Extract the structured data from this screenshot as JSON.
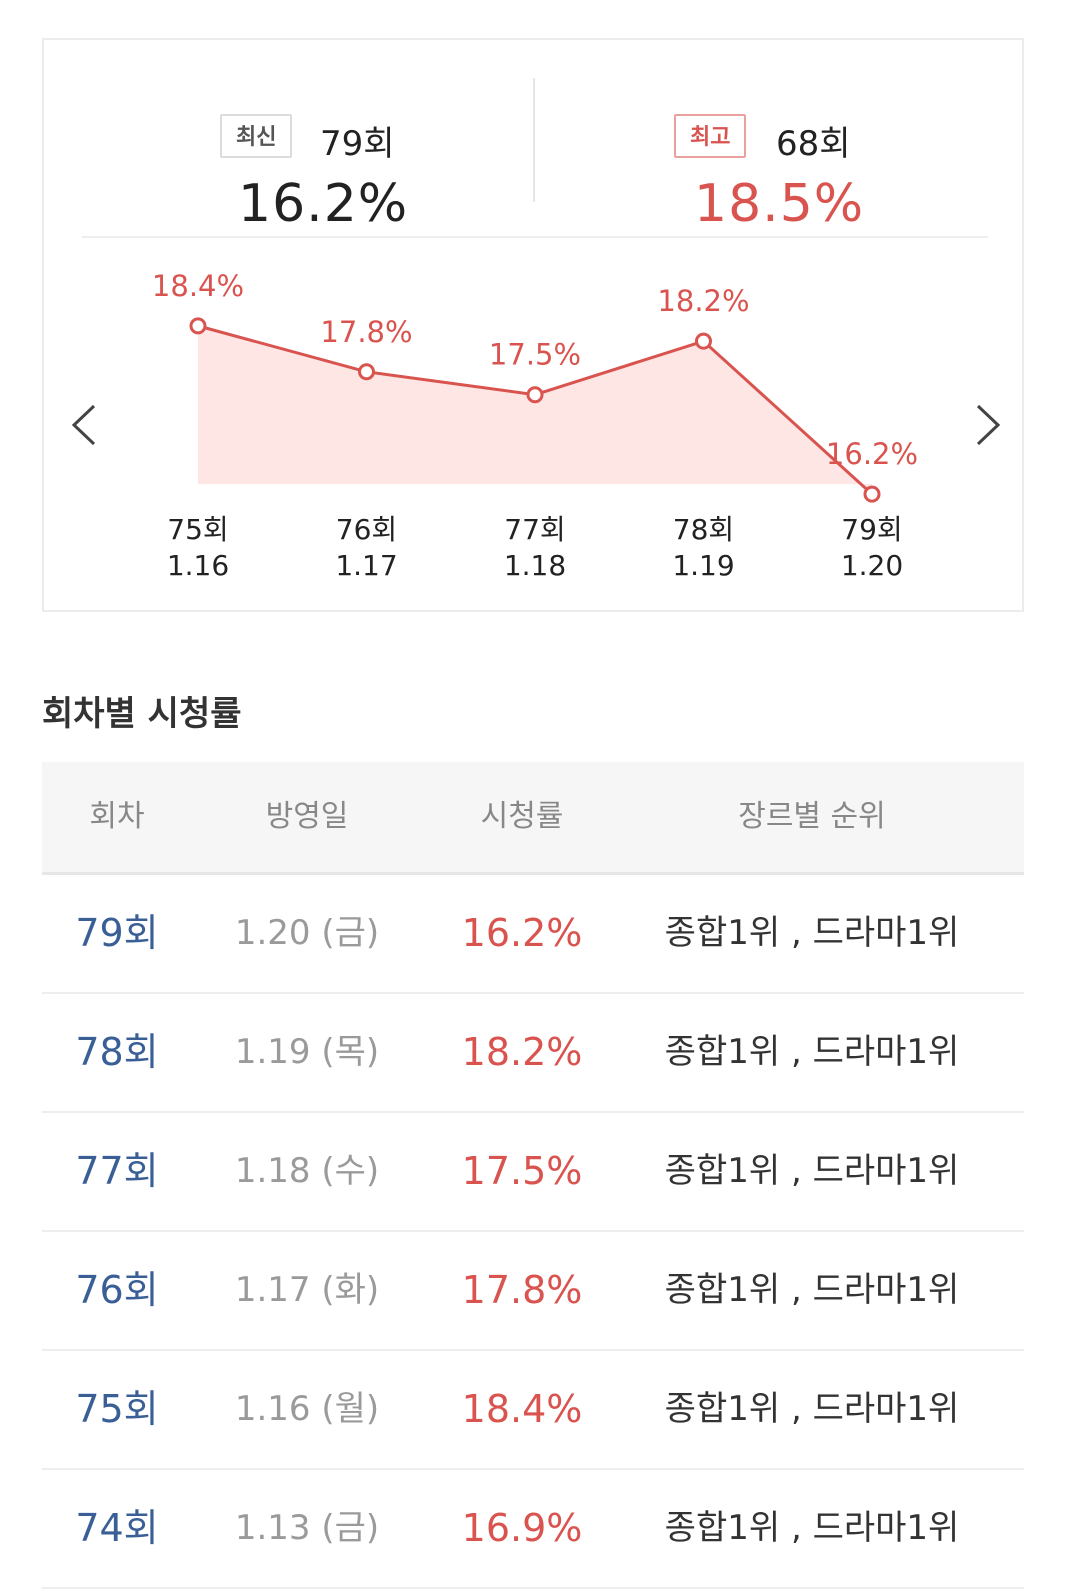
{
  "summary": {
    "latest": {
      "badge": "최신",
      "episode": "79회",
      "rating": "16.2%"
    },
    "highest": {
      "badge": "최고",
      "episode": "68회",
      "rating": "18.5%"
    }
  },
  "chart_data": {
    "type": "area",
    "categories": [
      "75회",
      "76회",
      "77회",
      "78회",
      "79회"
    ],
    "dates": [
      "1.16",
      "1.17",
      "1.18",
      "1.19",
      "1.20"
    ],
    "values": [
      18.4,
      17.8,
      17.5,
      18.2,
      16.2
    ],
    "value_labels": [
      "18.4%",
      "17.8%",
      "17.5%",
      "18.2%",
      "16.2%"
    ],
    "ylim": [
      15.6,
      19.0
    ],
    "colors": {
      "line": "#d9534f",
      "fill": "#fde6e4"
    }
  },
  "nav": {
    "prev_icon": "chevron-left-icon",
    "next_icon": "chevron-right-icon"
  },
  "section_title": "회차별 시청률",
  "table": {
    "headers": [
      "회차",
      "방영일",
      "시청률",
      "장르별 순위"
    ],
    "rows": [
      {
        "episode": "79회",
        "date": "1.20 (금)",
        "rating": "16.2%",
        "rank": "종합1위 , 드라마1위"
      },
      {
        "episode": "78회",
        "date": "1.19 (목)",
        "rating": "18.2%",
        "rank": "종합1위 , 드라마1위"
      },
      {
        "episode": "77회",
        "date": "1.18 (수)",
        "rating": "17.5%",
        "rank": "종합1위 , 드라마1위"
      },
      {
        "episode": "76회",
        "date": "1.17 (화)",
        "rating": "17.8%",
        "rank": "종합1위 , 드라마1위"
      },
      {
        "episode": "75회",
        "date": "1.16 (월)",
        "rating": "18.4%",
        "rank": "종합1위 , 드라마1위"
      },
      {
        "episode": "74회",
        "date": "1.13 (금)",
        "rating": "16.9%",
        "rank": "종합1위 , 드라마1위"
      }
    ]
  }
}
